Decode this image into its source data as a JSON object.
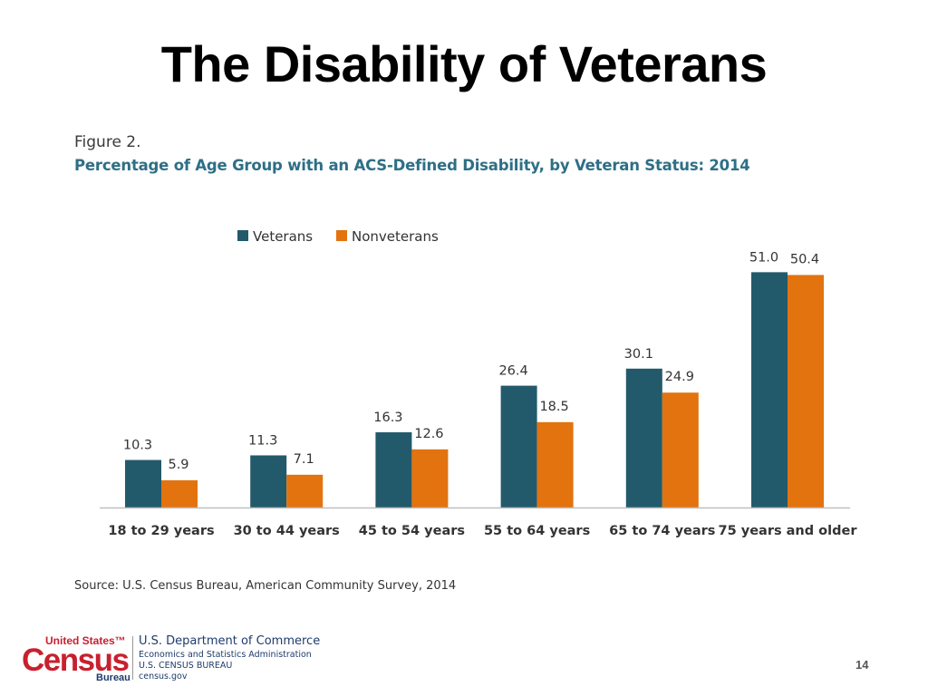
{
  "slide": {
    "title": "The Disability of Veterans",
    "page_number": "14"
  },
  "figure": {
    "label": "Figure 2.",
    "caption": "Percentage of Age Group with an ACS-Defined Disability, by Veteran Status: 2014",
    "source": "Source: U.S. Census Bureau, American Community Survey, 2014"
  },
  "chart_data": {
    "type": "bar",
    "title": "Percentage of Age Group with an ACS-Defined Disability, by Veteran Status: 2014",
    "xlabel": "",
    "ylabel": "",
    "ylim": [
      0,
      55
    ],
    "grid": false,
    "legend_position": "top-left",
    "categories": [
      "18 to 29 years",
      "30 to 44 years",
      "45 to 54 years",
      "55 to 64 years",
      "65 to 74 years",
      "75 years and older"
    ],
    "series": [
      {
        "name": "Veterans",
        "color": "#225a6b",
        "values": [
          10.3,
          11.3,
          16.3,
          26.4,
          30.1,
          51.0
        ],
        "labels": [
          "10.3",
          "11.3",
          "16.3",
          "26.4",
          "30.1",
          "51.0"
        ]
      },
      {
        "name": "Nonveterans",
        "color": "#e2730f",
        "values": [
          5.9,
          7.1,
          12.6,
          18.5,
          24.9,
          50.4
        ],
        "labels": [
          "5.9",
          "7.1",
          "12.6",
          "18.5",
          "24.9",
          "50.4"
        ]
      }
    ]
  },
  "footer": {
    "logo": {
      "united_states": "United States™",
      "census": "Census",
      "bureau": "Bureau"
    },
    "department": "U.S. Department of Commerce",
    "administration": "Economics and Statistics Administration",
    "bureau_name": "U.S. CENSUS BUREAU",
    "website": "census.gov"
  }
}
